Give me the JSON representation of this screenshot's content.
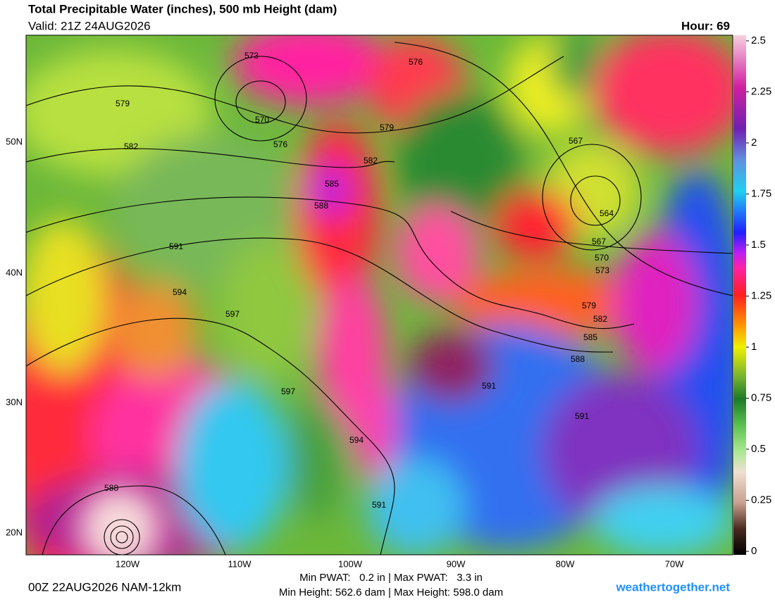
{
  "header": {
    "title": "Total Precipitable Water (inches), 500 mb Height (dam)",
    "valid": "Valid: 21Z 24AUG2026",
    "hour": "Hour: 69"
  },
  "map": {
    "latitude_labels": [
      "50N",
      "40N",
      "30N",
      "20N"
    ],
    "longitude_labels": [
      "120W",
      "110W",
      "100W",
      "90W",
      "80W",
      "70W"
    ],
    "contour_labels": [
      "579",
      "582",
      "573",
      "570",
      "576",
      "576",
      "579",
      "582",
      "585",
      "588",
      "591",
      "594",
      "597",
      "597",
      "594",
      "591",
      "588",
      "567",
      "564",
      "567",
      "570",
      "573",
      "579",
      "582",
      "585",
      "588",
      "591",
      "591"
    ]
  },
  "colorbar": {
    "range": [
      0,
      2.5
    ],
    "ticks": [
      0,
      0.25,
      0.5,
      0.75,
      1,
      1.25,
      1.5,
      1.75,
      2,
      2.25,
      2.5
    ]
  },
  "footer": {
    "run": "00Z 22AUG2026 NAM-12km",
    "pwat": "Min PWAT:   0.2 in | Max PWAT:   3.3 in",
    "height": "Min Height: 562.6 dam | Max Height: 598.0 dam",
    "site": "weathertogether.net"
  }
}
